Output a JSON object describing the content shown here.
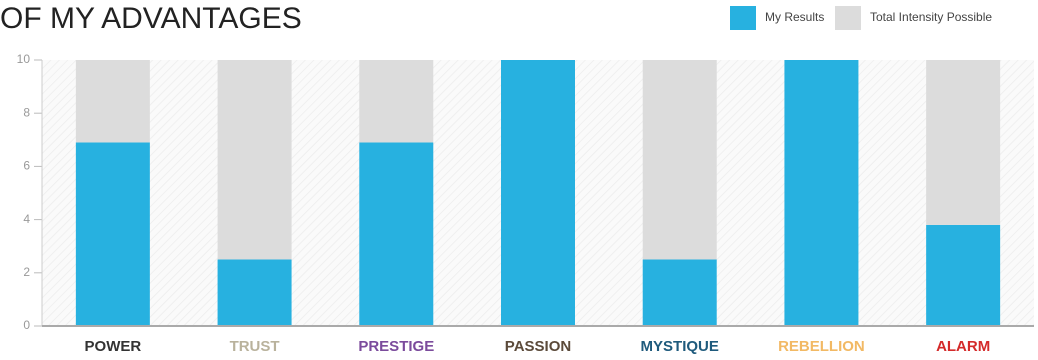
{
  "chart_data": {
    "type": "stacked_bar",
    "title": "OF MY ADVANTAGES",
    "categories": [
      "POWER",
      "TRUST",
      "PRESTIGE",
      "PASSION",
      "MYSTIQUE",
      "REBELLION",
      "ALARM"
    ],
    "category_colors": [
      "#333333",
      "#b9b29c",
      "#7b4b9c",
      "#5b4a3a",
      "#1e5a7c",
      "#f2b964",
      "#d42a2a"
    ],
    "series": [
      {
        "name": "My Results",
        "color": "#27b1e0",
        "values": [
          6.9,
          2.5,
          6.9,
          10,
          2.5,
          10,
          3.8
        ]
      },
      {
        "name": "Total Intensity Possible",
        "color": "#dcdcdc",
        "values": [
          3.1,
          7.5,
          3.1,
          0,
          7.5,
          0,
          6.2
        ]
      }
    ],
    "ylim": [
      0,
      10
    ],
    "yticks": [
      0,
      2,
      4,
      6,
      8,
      10
    ]
  }
}
